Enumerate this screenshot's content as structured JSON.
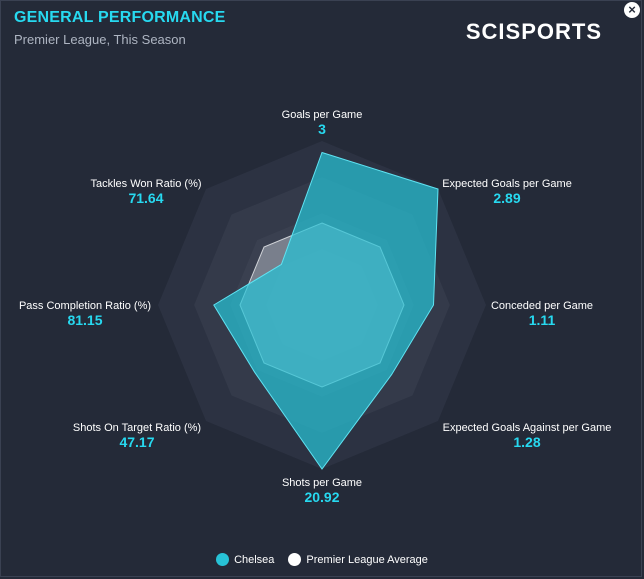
{
  "header": {
    "title": "GENERAL PERFORMANCE",
    "subtitle": "Premier League, This Season",
    "brand": "SCISPORTS",
    "close_label": "×"
  },
  "chart_data": {
    "type": "radar",
    "axes": [
      {
        "name": "Goals per Game",
        "display": "3"
      },
      {
        "name": "Expected Goals per Game",
        "display": "2.89"
      },
      {
        "name": "Conceded per Game",
        "display": "1.11"
      },
      {
        "name": "Expected Goals Against per Game",
        "display": "1.28"
      },
      {
        "name": "Shots per Game",
        "display": "20.92"
      },
      {
        "name": "Shots On Target Ratio (%)",
        "display": "47.17"
      },
      {
        "name": "Pass Completion Ratio (%)",
        "display": "81.15"
      },
      {
        "name": "Tackles Won Ratio (%)",
        "display": "71.64"
      }
    ],
    "scale": "normalized 0-1 per axis",
    "series": [
      {
        "name": "Chelsea",
        "color": "#27c2d6",
        "values": [
          0.93,
          1.0,
          0.68,
          0.6,
          1.0,
          0.58,
          0.66,
          0.35
        ]
      },
      {
        "name": "Premier League Average",
        "color": "#d0d3d8",
        "values": [
          0.5,
          0.5,
          0.5,
          0.5,
          0.5,
          0.5,
          0.5,
          0.5
        ]
      }
    ],
    "grid_rings": 4,
    "legend": "bottom"
  },
  "legend": [
    {
      "label": "Chelsea",
      "color": "#27c2d6"
    },
    {
      "label": "Premier League Average",
      "color": "#ffffff"
    }
  ]
}
